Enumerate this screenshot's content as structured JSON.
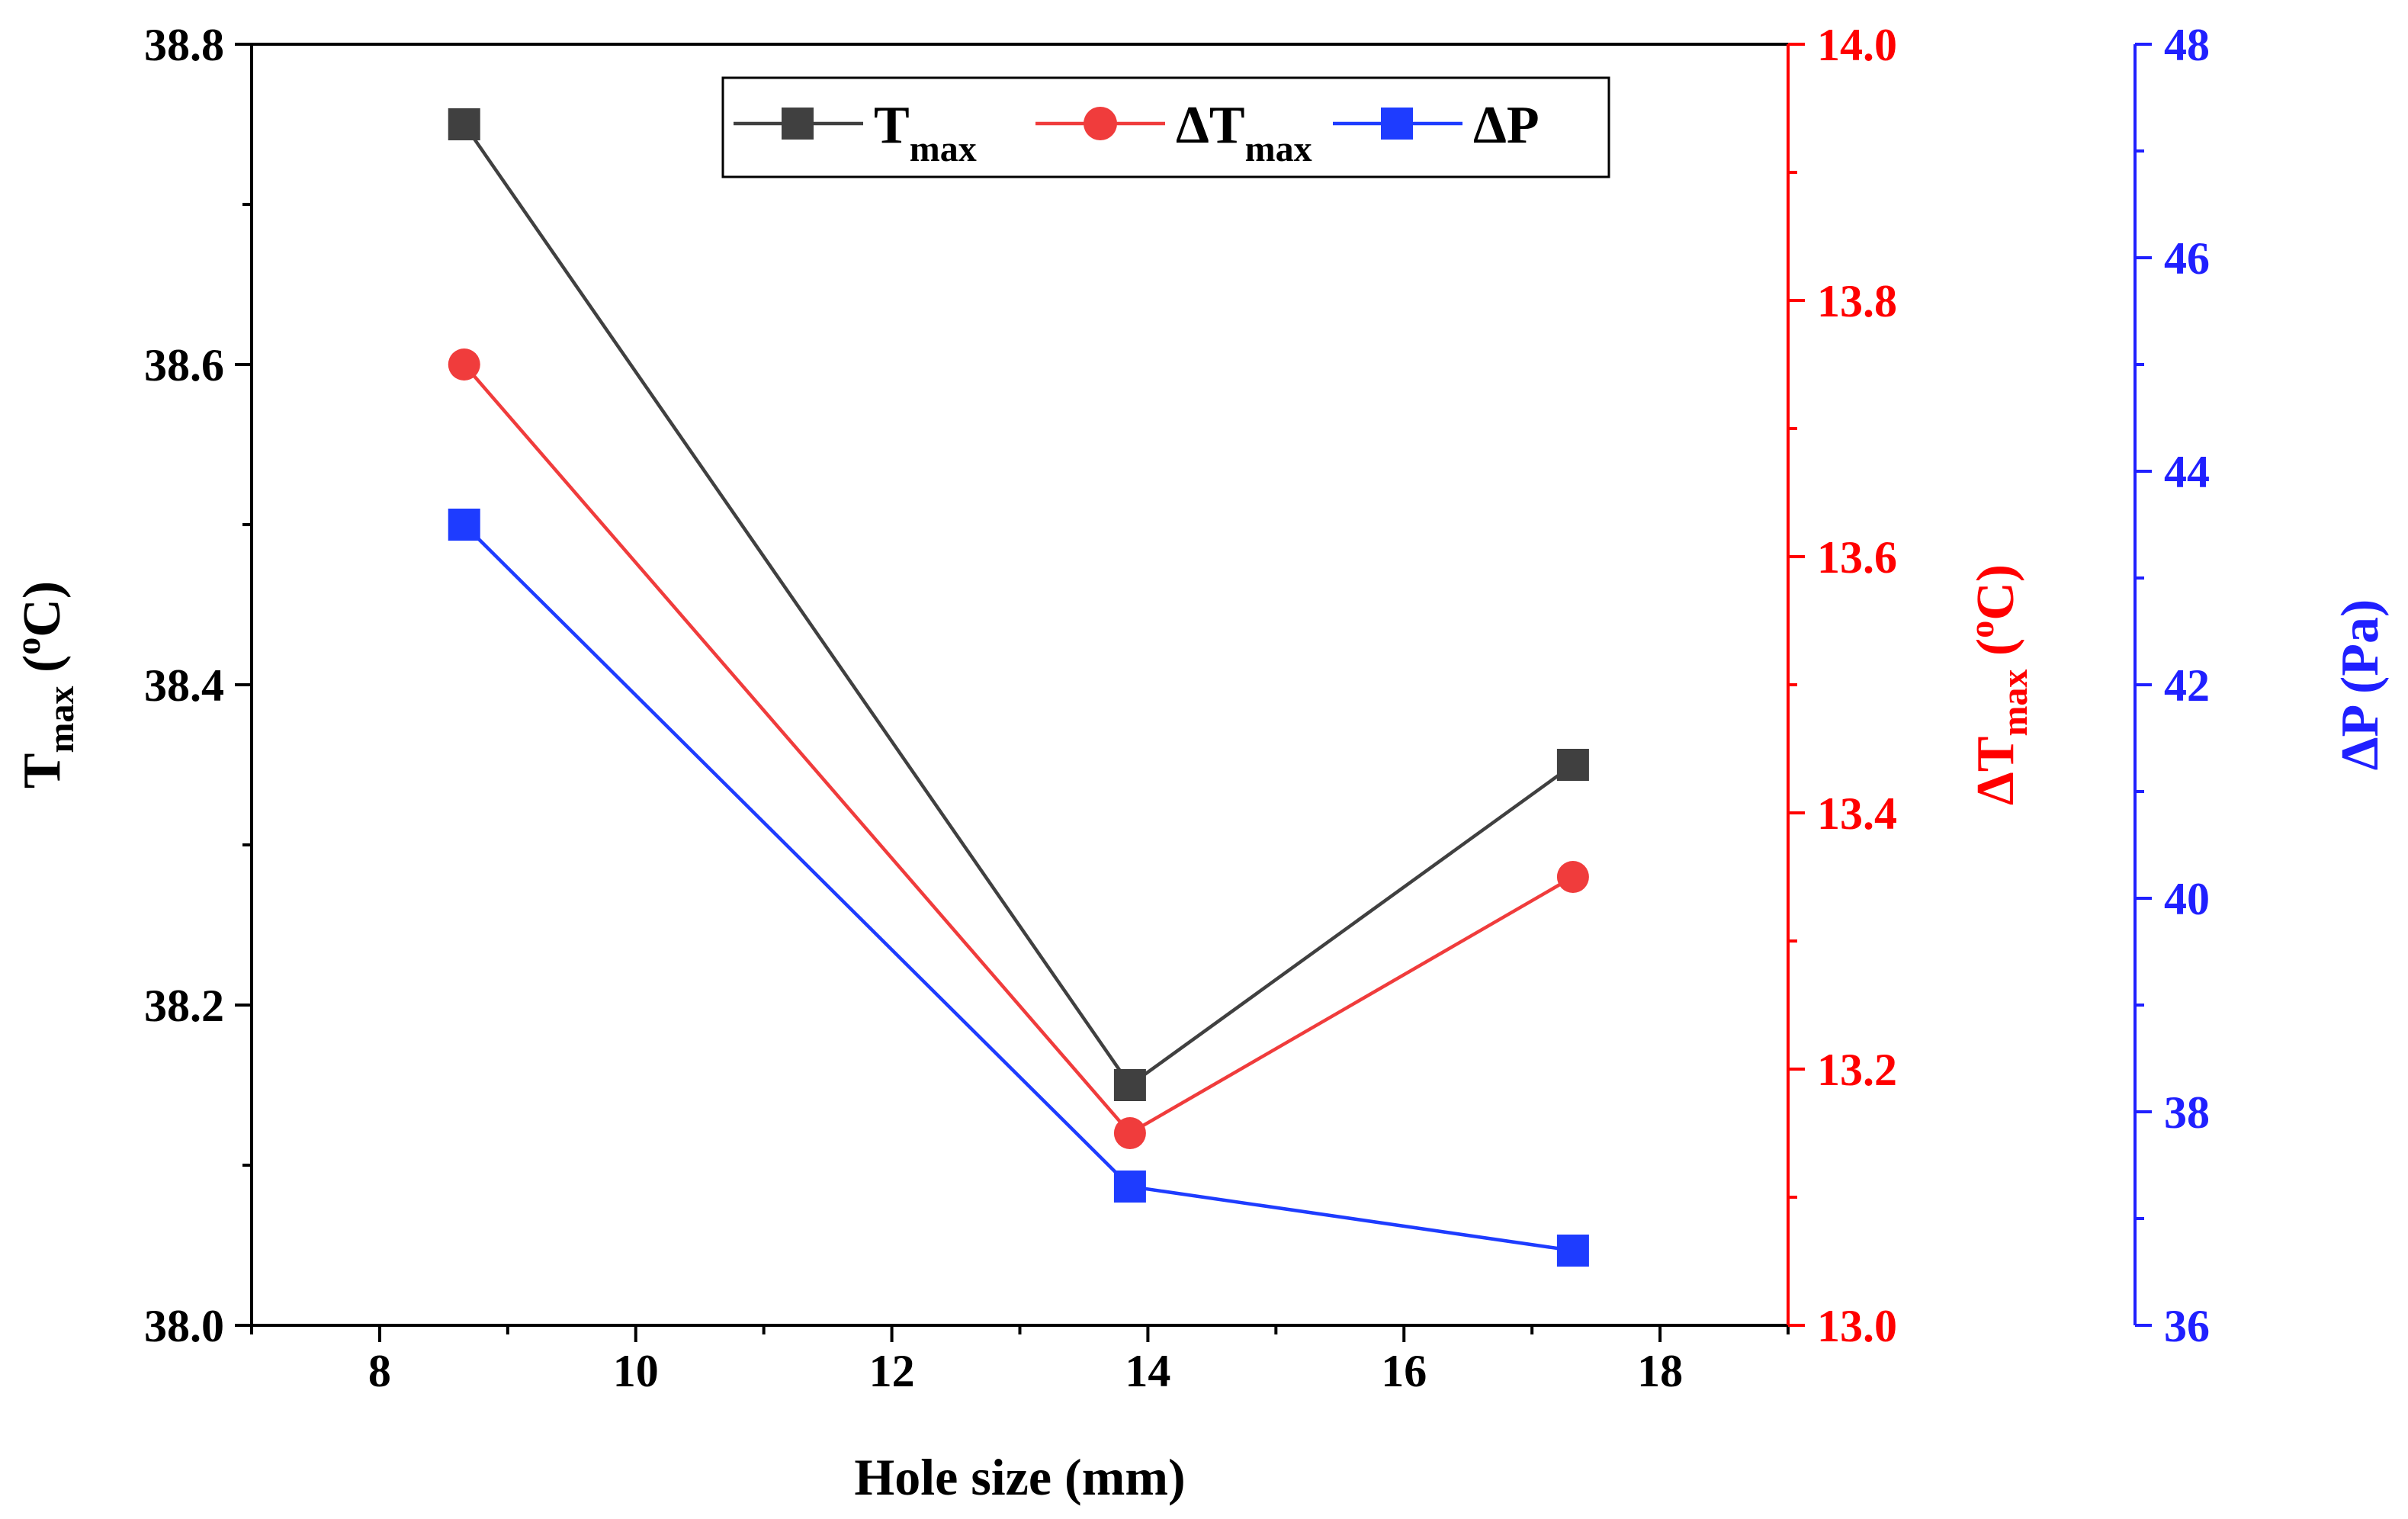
{
  "chart_data": {
    "type": "line",
    "title": "",
    "xlabel": "Hole size (mm)",
    "xlim": [
      7,
      19
    ],
    "xticks": [
      8,
      10,
      12,
      14,
      16,
      18
    ],
    "x": [
      8.66,
      13.86,
      17.32
    ],
    "axes": [
      {
        "id": "left",
        "label_main": "T",
        "label_sub": "max",
        "label_pre": "",
        "label_tail_open": " (",
        "label_sup": "o",
        "label_tail_close": "C)",
        "ylim": [
          38.0,
          38.8
        ],
        "ticks": [
          "38.0",
          "38.2",
          "38.4",
          "38.6",
          "38.8"
        ],
        "color": "#000000"
      },
      {
        "id": "right1",
        "label_main": "T",
        "label_sub": "max",
        "label_pre": "ΔT",
        "label_tail_open": " (",
        "label_sup": "o",
        "label_tail_close": "C)",
        "ylim": [
          13.0,
          14.0
        ],
        "ticks": [
          "13.0",
          "13.2",
          "13.4",
          "13.6",
          "13.8",
          "14.0"
        ],
        "color": "#ff0000"
      },
      {
        "id": "right2",
        "label_full": "ΔP (Pa)",
        "ylim": [
          36,
          48
        ],
        "ticks": [
          "36",
          "38",
          "40",
          "42",
          "44",
          "46",
          "48"
        ],
        "color": "#2020ff"
      }
    ],
    "series": [
      {
        "name": "T",
        "name_sub": "max",
        "axis": "left",
        "marker": "square",
        "line_color": "#404040",
        "marker_color": "#404040",
        "values": [
          38.75,
          38.15,
          38.35
        ]
      },
      {
        "name": "ΔT",
        "name_sub": "max",
        "axis": "right1",
        "marker": "circle",
        "line_color": "#f03c3c",
        "marker_color": "#f03c3c",
        "values": [
          13.75,
          13.15,
          13.35
        ]
      },
      {
        "name": "ΔP",
        "name_sub": "",
        "axis": "right2",
        "marker": "square",
        "line_color": "#1e3cff",
        "marker_color": "#1e3cff",
        "values": [
          43.5,
          37.3,
          36.7
        ]
      }
    ],
    "legend": "top-center"
  }
}
